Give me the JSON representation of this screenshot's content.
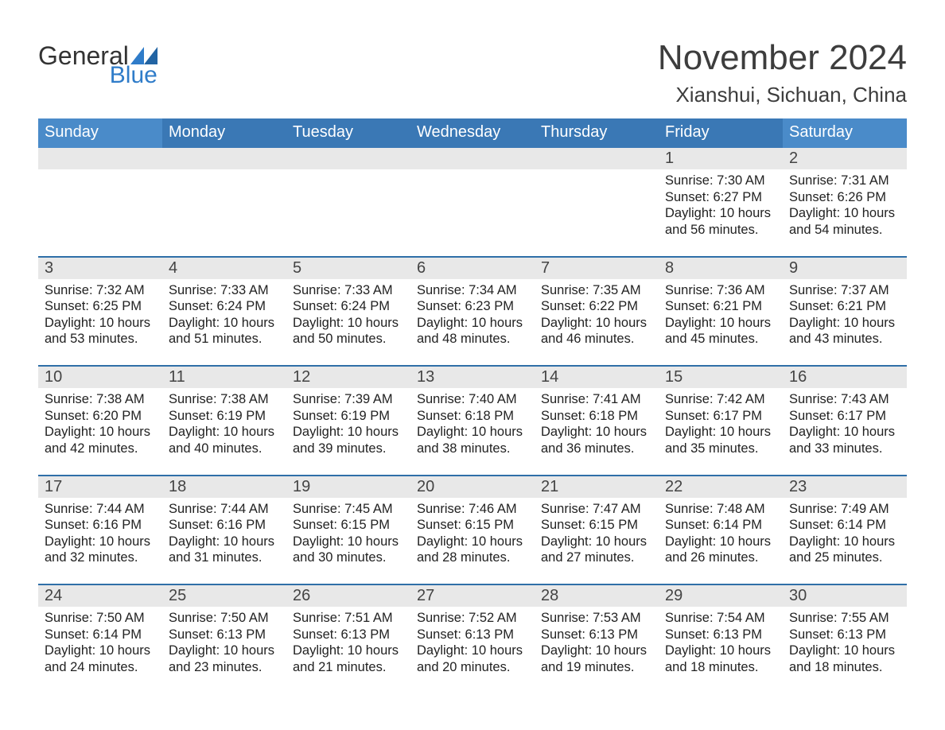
{
  "brand": {
    "line1": "General",
    "line2": "Blue"
  },
  "title": {
    "month": "November 2024",
    "location": "Xianshui, Sichuan, China"
  },
  "colors": {
    "header_blue": "#3a78b5",
    "row_sep": "#2f6fa8",
    "daynum_bg": "#e8e8e8",
    "logo_blue": "#2f7cc9",
    "page_bg": "#ffffff",
    "text": "#222222"
  },
  "weekday_headers": [
    "Sunday",
    "Monday",
    "Tuesday",
    "Wednesday",
    "Thursday",
    "Friday",
    "Saturday"
  ],
  "weeks": [
    [
      null,
      null,
      null,
      null,
      null,
      {
        "n": "1",
        "sunrise": "Sunrise: 7:30 AM",
        "sunset": "Sunset: 6:27 PM",
        "daylight1": "Daylight: 10 hours",
        "daylight2": "and 56 minutes."
      },
      {
        "n": "2",
        "sunrise": "Sunrise: 7:31 AM",
        "sunset": "Sunset: 6:26 PM",
        "daylight1": "Daylight: 10 hours",
        "daylight2": "and 54 minutes."
      }
    ],
    [
      {
        "n": "3",
        "sunrise": "Sunrise: 7:32 AM",
        "sunset": "Sunset: 6:25 PM",
        "daylight1": "Daylight: 10 hours",
        "daylight2": "and 53 minutes."
      },
      {
        "n": "4",
        "sunrise": "Sunrise: 7:33 AM",
        "sunset": "Sunset: 6:24 PM",
        "daylight1": "Daylight: 10 hours",
        "daylight2": "and 51 minutes."
      },
      {
        "n": "5",
        "sunrise": "Sunrise: 7:33 AM",
        "sunset": "Sunset: 6:24 PM",
        "daylight1": "Daylight: 10 hours",
        "daylight2": "and 50 minutes."
      },
      {
        "n": "6",
        "sunrise": "Sunrise: 7:34 AM",
        "sunset": "Sunset: 6:23 PM",
        "daylight1": "Daylight: 10 hours",
        "daylight2": "and 48 minutes."
      },
      {
        "n": "7",
        "sunrise": "Sunrise: 7:35 AM",
        "sunset": "Sunset: 6:22 PM",
        "daylight1": "Daylight: 10 hours",
        "daylight2": "and 46 minutes."
      },
      {
        "n": "8",
        "sunrise": "Sunrise: 7:36 AM",
        "sunset": "Sunset: 6:21 PM",
        "daylight1": "Daylight: 10 hours",
        "daylight2": "and 45 minutes."
      },
      {
        "n": "9",
        "sunrise": "Sunrise: 7:37 AM",
        "sunset": "Sunset: 6:21 PM",
        "daylight1": "Daylight: 10 hours",
        "daylight2": "and 43 minutes."
      }
    ],
    [
      {
        "n": "10",
        "sunrise": "Sunrise: 7:38 AM",
        "sunset": "Sunset: 6:20 PM",
        "daylight1": "Daylight: 10 hours",
        "daylight2": "and 42 minutes."
      },
      {
        "n": "11",
        "sunrise": "Sunrise: 7:38 AM",
        "sunset": "Sunset: 6:19 PM",
        "daylight1": "Daylight: 10 hours",
        "daylight2": "and 40 minutes."
      },
      {
        "n": "12",
        "sunrise": "Sunrise: 7:39 AM",
        "sunset": "Sunset: 6:19 PM",
        "daylight1": "Daylight: 10 hours",
        "daylight2": "and 39 minutes."
      },
      {
        "n": "13",
        "sunrise": "Sunrise: 7:40 AM",
        "sunset": "Sunset: 6:18 PM",
        "daylight1": "Daylight: 10 hours",
        "daylight2": "and 38 minutes."
      },
      {
        "n": "14",
        "sunrise": "Sunrise: 7:41 AM",
        "sunset": "Sunset: 6:18 PM",
        "daylight1": "Daylight: 10 hours",
        "daylight2": "and 36 minutes."
      },
      {
        "n": "15",
        "sunrise": "Sunrise: 7:42 AM",
        "sunset": "Sunset: 6:17 PM",
        "daylight1": "Daylight: 10 hours",
        "daylight2": "and 35 minutes."
      },
      {
        "n": "16",
        "sunrise": "Sunrise: 7:43 AM",
        "sunset": "Sunset: 6:17 PM",
        "daylight1": "Daylight: 10 hours",
        "daylight2": "and 33 minutes."
      }
    ],
    [
      {
        "n": "17",
        "sunrise": "Sunrise: 7:44 AM",
        "sunset": "Sunset: 6:16 PM",
        "daylight1": "Daylight: 10 hours",
        "daylight2": "and 32 minutes."
      },
      {
        "n": "18",
        "sunrise": "Sunrise: 7:44 AM",
        "sunset": "Sunset: 6:16 PM",
        "daylight1": "Daylight: 10 hours",
        "daylight2": "and 31 minutes."
      },
      {
        "n": "19",
        "sunrise": "Sunrise: 7:45 AM",
        "sunset": "Sunset: 6:15 PM",
        "daylight1": "Daylight: 10 hours",
        "daylight2": "and 30 minutes."
      },
      {
        "n": "20",
        "sunrise": "Sunrise: 7:46 AM",
        "sunset": "Sunset: 6:15 PM",
        "daylight1": "Daylight: 10 hours",
        "daylight2": "and 28 minutes."
      },
      {
        "n": "21",
        "sunrise": "Sunrise: 7:47 AM",
        "sunset": "Sunset: 6:15 PM",
        "daylight1": "Daylight: 10 hours",
        "daylight2": "and 27 minutes."
      },
      {
        "n": "22",
        "sunrise": "Sunrise: 7:48 AM",
        "sunset": "Sunset: 6:14 PM",
        "daylight1": "Daylight: 10 hours",
        "daylight2": "and 26 minutes."
      },
      {
        "n": "23",
        "sunrise": "Sunrise: 7:49 AM",
        "sunset": "Sunset: 6:14 PM",
        "daylight1": "Daylight: 10 hours",
        "daylight2": "and 25 minutes."
      }
    ],
    [
      {
        "n": "24",
        "sunrise": "Sunrise: 7:50 AM",
        "sunset": "Sunset: 6:14 PM",
        "daylight1": "Daylight: 10 hours",
        "daylight2": "and 24 minutes."
      },
      {
        "n": "25",
        "sunrise": "Sunrise: 7:50 AM",
        "sunset": "Sunset: 6:13 PM",
        "daylight1": "Daylight: 10 hours",
        "daylight2": "and 23 minutes."
      },
      {
        "n": "26",
        "sunrise": "Sunrise: 7:51 AM",
        "sunset": "Sunset: 6:13 PM",
        "daylight1": "Daylight: 10 hours",
        "daylight2": "and 21 minutes."
      },
      {
        "n": "27",
        "sunrise": "Sunrise: 7:52 AM",
        "sunset": "Sunset: 6:13 PM",
        "daylight1": "Daylight: 10 hours",
        "daylight2": "and 20 minutes."
      },
      {
        "n": "28",
        "sunrise": "Sunrise: 7:53 AM",
        "sunset": "Sunset: 6:13 PM",
        "daylight1": "Daylight: 10 hours",
        "daylight2": "and 19 minutes."
      },
      {
        "n": "29",
        "sunrise": "Sunrise: 7:54 AM",
        "sunset": "Sunset: 6:13 PM",
        "daylight1": "Daylight: 10 hours",
        "daylight2": "and 18 minutes."
      },
      {
        "n": "30",
        "sunrise": "Sunrise: 7:55 AM",
        "sunset": "Sunset: 6:13 PM",
        "daylight1": "Daylight: 10 hours",
        "daylight2": "and 18 minutes."
      }
    ]
  ]
}
